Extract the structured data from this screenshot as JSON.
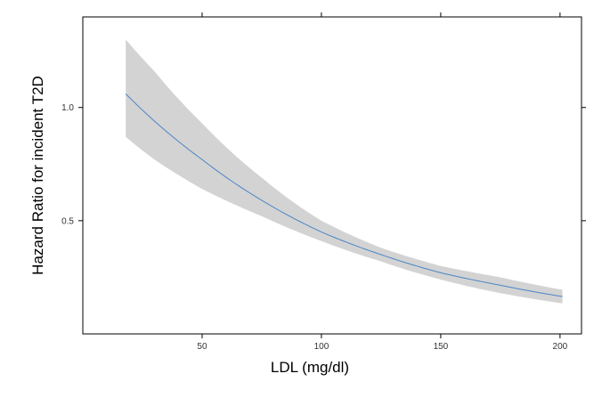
{
  "chart_data": {
    "type": "line",
    "title": "",
    "xlabel": "LDL (mg/dl)",
    "ylabel": "Hazard Ratio for incident T2D",
    "xlim": [
      0,
      209
    ],
    "ylim": [
      0,
      1.4
    ],
    "x_ticks": [
      50,
      100,
      150,
      200
    ],
    "y_ticks": [
      0.5,
      1.0
    ],
    "x_tick_labels": [
      "50",
      "100",
      "150",
      "200"
    ],
    "y_tick_labels": [
      "0.5",
      "1.0"
    ],
    "grid": false,
    "legend": "none",
    "series": [
      {
        "x": [
          18,
          30,
          50,
          75,
          100,
          125,
          150,
          175,
          201
        ],
        "y": [
          1.06,
          0.94,
          0.77,
          0.59,
          0.45,
          0.35,
          0.27,
          0.215,
          0.165
        ],
        "lower": [
          0.87,
          0.77,
          0.64,
          0.52,
          0.41,
          0.32,
          0.24,
          0.18,
          0.135
        ],
        "upper": [
          1.3,
          1.16,
          0.93,
          0.69,
          0.5,
          0.38,
          0.3,
          0.25,
          0.195
        ]
      }
    ],
    "colors": {
      "line": "#4a86c5",
      "band": "#d3d3d3",
      "axis": "#000000"
    }
  }
}
